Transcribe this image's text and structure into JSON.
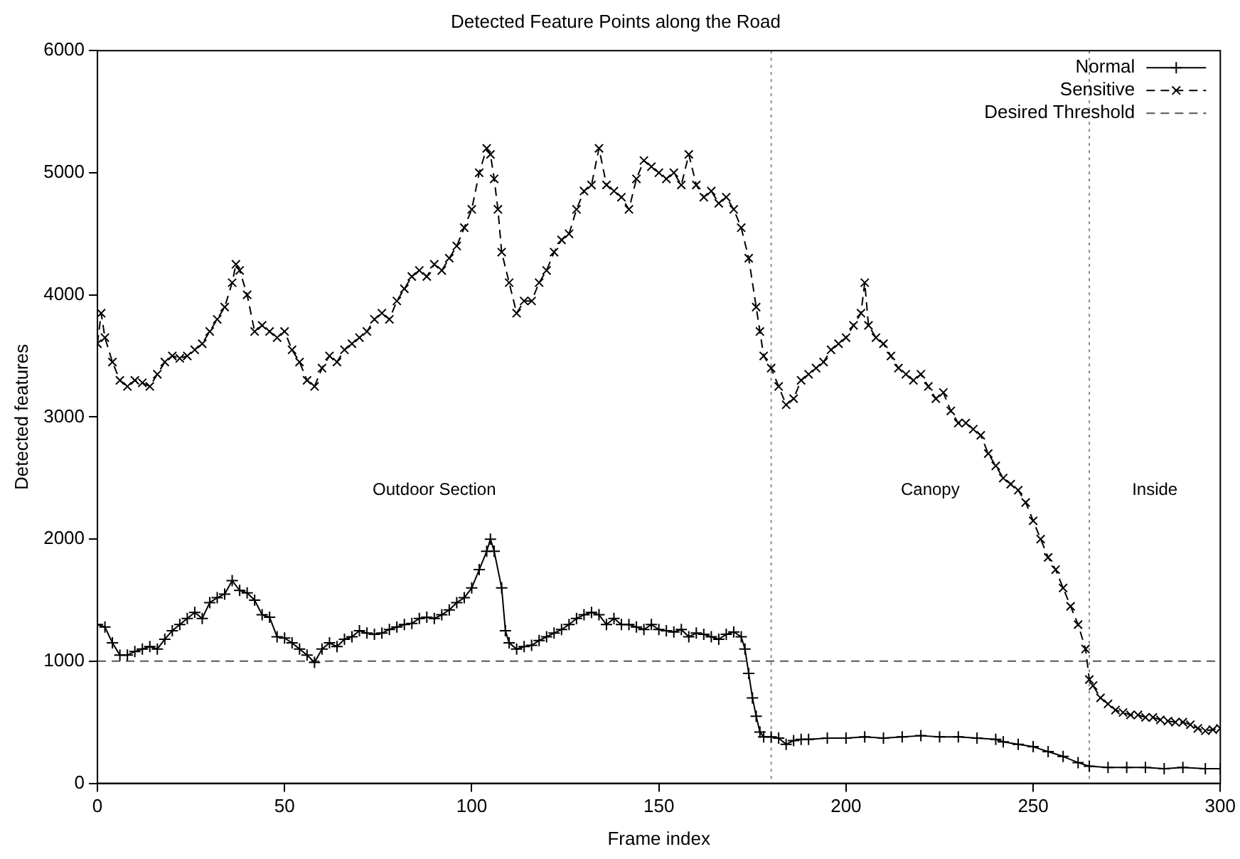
{
  "chart_data": {
    "type": "line",
    "title": "Detected Feature Points along the Road",
    "xlabel": "Frame index",
    "ylabel": "Detected features",
    "xlim": [
      0,
      300
    ],
    "xticks": [
      0,
      50,
      100,
      150,
      200,
      250,
      300
    ],
    "ylim": [
      0,
      6000
    ],
    "yticks": [
      0,
      1000,
      2000,
      3000,
      4000,
      5000,
      6000
    ],
    "grid": false,
    "legend": "top right",
    "series": [
      {
        "name": "Normal",
        "color": "#000000",
        "marker": "cross",
        "line_style": "solid",
        "x": [
          0,
          2,
          4,
          6,
          8,
          10,
          12,
          14,
          16,
          18,
          20,
          22,
          24,
          26,
          28,
          30,
          32,
          34,
          36,
          38,
          40,
          42,
          44,
          46,
          48,
          50,
          52,
          54,
          56,
          58,
          60,
          62,
          64,
          66,
          68,
          70,
          72,
          74,
          76,
          78,
          80,
          82,
          84,
          86,
          88,
          90,
          92,
          94,
          96,
          98,
          100,
          102,
          104,
          105,
          106,
          108,
          109,
          110,
          112,
          114,
          116,
          118,
          120,
          122,
          124,
          126,
          128,
          130,
          132,
          134,
          136,
          138,
          140,
          142,
          144,
          146,
          148,
          150,
          152,
          154,
          156,
          158,
          160,
          162,
          164,
          166,
          168,
          170,
          172,
          173,
          174,
          175,
          176,
          177,
          178,
          180,
          182,
          184,
          186,
          188,
          190,
          195,
          200,
          205,
          210,
          215,
          220,
          225,
          230,
          235,
          240,
          242,
          246,
          250,
          254,
          258,
          262,
          265,
          270,
          275,
          280,
          285,
          290,
          296,
          300
        ],
        "values": [
          1300,
          1280,
          1150,
          1050,
          1050,
          1080,
          1100,
          1120,
          1100,
          1180,
          1250,
          1300,
          1350,
          1400,
          1350,
          1480,
          1520,
          1550,
          1660,
          1580,
          1560,
          1500,
          1380,
          1360,
          1200,
          1190,
          1150,
          1100,
          1050,
          990,
          1100,
          1150,
          1120,
          1180,
          1200,
          1250,
          1230,
          1220,
          1230,
          1260,
          1280,
          1300,
          1310,
          1350,
          1360,
          1350,
          1380,
          1420,
          1480,
          1520,
          1600,
          1750,
          1900,
          2000,
          1900,
          1600,
          1250,
          1150,
          1100,
          1120,
          1130,
          1170,
          1200,
          1230,
          1260,
          1300,
          1350,
          1380,
          1400,
          1380,
          1300,
          1350,
          1300,
          1300,
          1280,
          1260,
          1300,
          1260,
          1250,
          1240,
          1260,
          1200,
          1230,
          1220,
          1200,
          1180,
          1220,
          1240,
          1200,
          1100,
          900,
          700,
          550,
          420,
          380,
          380,
          370,
          320,
          350,
          360,
          360,
          370,
          370,
          380,
          370,
          380,
          390,
          380,
          380,
          370,
          360,
          340,
          320,
          300,
          260,
          220,
          170,
          140,
          130,
          130,
          130,
          120,
          130,
          120,
          120
        ]
      },
      {
        "name": "Sensitive",
        "color": "#000000",
        "marker": "x",
        "line_style": "dashed",
        "x": [
          0,
          1,
          2,
          4,
          6,
          8,
          10,
          12,
          14,
          16,
          18,
          20,
          22,
          24,
          26,
          28,
          30,
          32,
          34,
          36,
          37,
          38,
          40,
          42,
          44,
          46,
          48,
          50,
          52,
          54,
          56,
          58,
          60,
          62,
          64,
          66,
          68,
          70,
          72,
          74,
          76,
          78,
          80,
          82,
          84,
          86,
          88,
          90,
          92,
          94,
          96,
          98,
          100,
          102,
          104,
          105,
          106,
          107,
          108,
          110,
          112,
          114,
          116,
          118,
          120,
          122,
          124,
          126,
          128,
          130,
          132,
          134,
          136,
          138,
          140,
          142,
          144,
          146,
          148,
          150,
          152,
          154,
          156,
          158,
          160,
          162,
          164,
          166,
          168,
          170,
          172,
          174,
          176,
          177,
          178,
          180,
          182,
          184,
          186,
          188,
          190,
          192,
          194,
          196,
          198,
          200,
          202,
          204,
          205,
          206,
          208,
          210,
          212,
          214,
          216,
          218,
          220,
          222,
          224,
          226,
          228,
          230,
          232,
          234,
          236,
          238,
          240,
          242,
          244,
          246,
          248,
          250,
          252,
          254,
          256,
          258,
          260,
          262,
          264,
          265,
          266,
          268,
          270,
          272,
          274,
          276,
          278,
          280,
          282,
          284,
          286,
          288,
          290,
          292,
          294,
          296,
          298,
          300
        ],
        "values": [
          3600,
          3850,
          3650,
          3450,
          3300,
          3250,
          3300,
          3280,
          3250,
          3350,
          3450,
          3500,
          3480,
          3500,
          3550,
          3600,
          3700,
          3800,
          3900,
          4100,
          4250,
          4200,
          4000,
          3700,
          3750,
          3700,
          3650,
          3700,
          3550,
          3450,
          3300,
          3250,
          3400,
          3500,
          3450,
          3550,
          3600,
          3650,
          3700,
          3800,
          3850,
          3800,
          3950,
          4050,
          4150,
          4200,
          4150,
          4250,
          4200,
          4300,
          4400,
          4550,
          4700,
          5000,
          5200,
          5150,
          4950,
          4700,
          4350,
          4100,
          3850,
          3950,
          3950,
          4100,
          4200,
          4350,
          4450,
          4500,
          4700,
          4850,
          4900,
          5200,
          4900,
          4850,
          4800,
          4700,
          4950,
          5100,
          5050,
          5000,
          4950,
          5000,
          4900,
          5150,
          4900,
          4800,
          4850,
          4750,
          4800,
          4700,
          4550,
          4300,
          3900,
          3700,
          3500,
          3400,
          3250,
          3100,
          3150,
          3300,
          3350,
          3400,
          3450,
          3550,
          3600,
          3650,
          3750,
          3850,
          4100,
          3750,
          3650,
          3600,
          3500,
          3400,
          3350,
          3300,
          3350,
          3250,
          3150,
          3200,
          3050,
          2950,
          2950,
          2900,
          2850,
          2700,
          2600,
          2500,
          2450,
          2400,
          2300,
          2150,
          2000,
          1850,
          1750,
          1600,
          1450,
          1300,
          1100,
          850,
          800,
          700,
          650,
          600,
          580,
          560,
          560,
          540,
          540,
          520,
          510,
          500,
          500,
          480,
          450,
          430,
          440,
          450
        ]
      }
    ],
    "ref_lines": [
      {
        "axis": "y",
        "value": 1000,
        "label": "Desired Threshold",
        "color": "#555555",
        "line_style": "dashed"
      },
      {
        "axis": "x",
        "value": 180,
        "color": "#888888",
        "line_style": "dotted"
      },
      {
        "axis": "x",
        "value": 265,
        "color": "#888888",
        "line_style": "dotted"
      }
    ],
    "annotations": [
      "Outdoor Section",
      "Canopy",
      "Inside"
    ]
  }
}
